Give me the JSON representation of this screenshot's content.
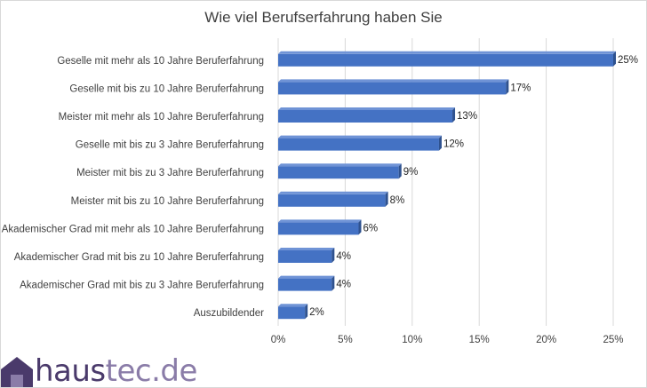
{
  "chart_data": {
    "type": "bar",
    "orientation": "horizontal",
    "title": "Wie viel Berufserfahrung haben Sie",
    "categories": [
      "Geselle mit mehr als 10 Jahre Beruferfahrung",
      "Geselle mit bis zu 10 Jahre Beruferfahrung",
      "Meister mit mehr als 10 Jahre Beruferfahrung",
      "Geselle mit bis zu 3 Jahre Beruferfahrung",
      "Meister mit bis zu 3 Jahre Beruferfahrung",
      "Meister mit bis zu 10 Jahre Beruferfahrung",
      "Akademischer Grad mit mehr als 10 Jahre Beruferfahrung",
      "Akademischer Grad mit bis zu 10 Jahre Beruferfahrung",
      "Akademischer Grad mit bis zu 3 Jahre Beruferfahrung",
      "Auszubildender"
    ],
    "values": [
      25,
      17,
      13,
      12,
      9,
      8,
      6,
      4,
      4,
      2
    ],
    "value_labels": [
      "25%",
      "17%",
      "13%",
      "12%",
      "9%",
      "8%",
      "6%",
      "4%",
      "4%",
      "2%"
    ],
    "xlim": [
      0,
      25
    ],
    "xticks": [
      0,
      5,
      10,
      15,
      20,
      25
    ],
    "xtick_labels": [
      "0%",
      "5%",
      "10%",
      "15%",
      "20%",
      "25%"
    ],
    "grid": true,
    "colors": {
      "bar_front": "#4472c4",
      "bar_top": "#6f93d6",
      "bar_side": "#2f528f",
      "grid": "#d9d9d9",
      "text": "#404040"
    }
  },
  "brand": {
    "name_part1": "haus",
    "name_part2": "tec.de",
    "colors": {
      "dark": "#4a3a6b",
      "light": "#8a7ca8"
    }
  }
}
